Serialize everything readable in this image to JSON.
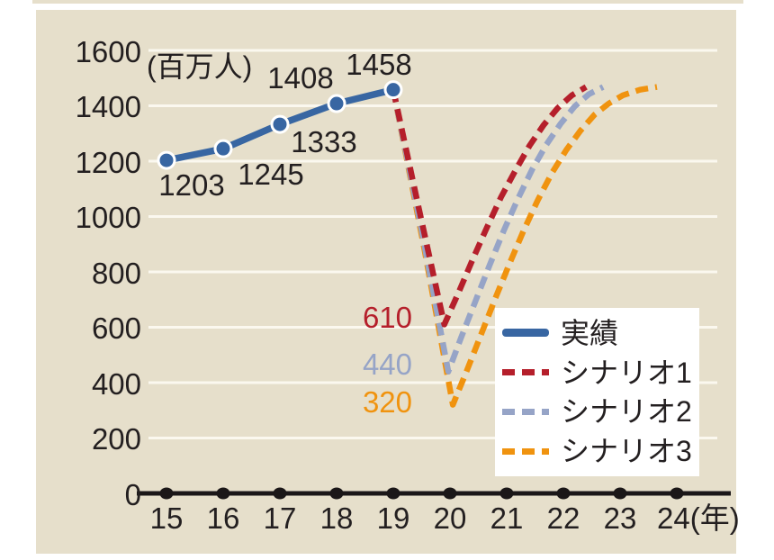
{
  "chart_data": {
    "type": "line",
    "unit_label": "(百万人)",
    "ylim": [
      0,
      1600
    ],
    "y_tick_step": 200,
    "y_ticks": [
      "1600",
      "1400",
      "1200",
      "1000",
      "800",
      "600",
      "400",
      "200",
      "0"
    ],
    "x_ticks": [
      "15",
      "16",
      "17",
      "18",
      "19",
      "20",
      "21",
      "22",
      "23",
      "24(年)"
    ],
    "x_years": [
      15,
      16,
      17,
      18,
      19,
      20,
      21,
      22,
      23,
      24
    ],
    "grid": true,
    "legend_position": "bottom-right",
    "background_color": "#e6dfcb",
    "gridline_color": "#fbf8ef",
    "axis_color": "#1b1718",
    "series": [
      {
        "name": "実績",
        "style": "solid",
        "marker": true,
        "color": "#3866a2",
        "x": [
          15,
          16,
          17,
          18,
          19
        ],
        "values": [
          1203,
          1245,
          1333,
          1408,
          1458
        ],
        "points": [
          [
            15,
            1203
          ],
          [
            16,
            1245
          ],
          [
            17,
            1333
          ],
          [
            18,
            1408
          ],
          [
            19,
            1458
          ]
        ],
        "point_labels": [
          "1203",
          "1245",
          "1333",
          "1408",
          "1458"
        ]
      },
      {
        "name": "シナリオ1",
        "style": "dashed",
        "marker": false,
        "color": "#b51f2b",
        "min_value": 610,
        "min_year": 20,
        "points": [
          [
            19,
            1458
          ],
          [
            19.45,
            1030
          ],
          [
            19.9,
            610
          ],
          [
            20.15,
            725
          ],
          [
            20.4,
            845
          ],
          [
            20.65,
            960
          ],
          [
            20.9,
            1070
          ],
          [
            21.15,
            1165
          ],
          [
            21.4,
            1255
          ],
          [
            21.65,
            1330
          ],
          [
            21.9,
            1392
          ],
          [
            22.15,
            1438
          ],
          [
            22.4,
            1468
          ]
        ]
      },
      {
        "name": "シナリオ2",
        "style": "dashed",
        "marker": false,
        "color": "#96a4c7",
        "min_value": 440,
        "min_year": 20,
        "points": [
          [
            19,
            1458
          ],
          [
            19.5,
            950
          ],
          [
            19.97,
            440
          ],
          [
            20.2,
            565
          ],
          [
            20.45,
            695
          ],
          [
            20.7,
            825
          ],
          [
            20.95,
            950
          ],
          [
            21.2,
            1065
          ],
          [
            21.45,
            1170
          ],
          [
            21.7,
            1260
          ],
          [
            21.95,
            1335
          ],
          [
            22.2,
            1398
          ],
          [
            22.45,
            1442
          ],
          [
            22.7,
            1468
          ]
        ]
      },
      {
        "name": "シナリオ3",
        "style": "dashed",
        "marker": false,
        "color": "#f0930f",
        "min_value": 320,
        "min_year": 20,
        "points": [
          [
            19,
            1458
          ],
          [
            19.55,
            880
          ],
          [
            20.05,
            320
          ],
          [
            20.3,
            445
          ],
          [
            20.55,
            575
          ],
          [
            20.8,
            705
          ],
          [
            21.05,
            830
          ],
          [
            21.3,
            950
          ],
          [
            21.55,
            1060
          ],
          [
            21.8,
            1158
          ],
          [
            22.05,
            1240
          ],
          [
            22.3,
            1310
          ],
          [
            22.55,
            1368
          ],
          [
            22.8,
            1408
          ],
          [
            23.05,
            1438
          ],
          [
            23.35,
            1458
          ],
          [
            23.65,
            1468
          ]
        ]
      }
    ],
    "dip_labels": [
      {
        "text": "610",
        "color": "#b51f2b"
      },
      {
        "text": "440",
        "color": "#96a4c7"
      },
      {
        "text": "320",
        "color": "#f0930f"
      }
    ]
  },
  "legend": {
    "items": [
      {
        "label": "実績"
      },
      {
        "label": "シナリオ1"
      },
      {
        "label": "シナリオ2"
      },
      {
        "label": "シナリオ3"
      }
    ]
  }
}
